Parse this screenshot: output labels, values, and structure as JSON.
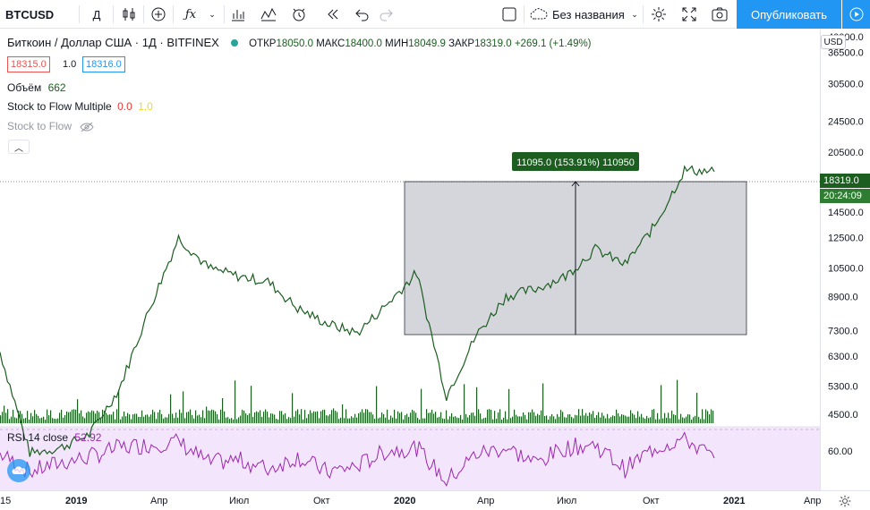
{
  "toolbar": {
    "symbol": "BTCUSD",
    "interval": "Д",
    "layout_name": "Без названия",
    "publish_label": "Опубликовать",
    "icons": [
      "candles-icon",
      "add-compare-icon",
      "indicators-icon",
      "templates-icon",
      "alert-icon",
      "replay-icon",
      "undo-icon",
      "redo-icon",
      "settings-icon",
      "fullscreen-icon",
      "camera-icon",
      "play-icon"
    ]
  },
  "legend": {
    "title": "Биткоин / Доллар США · 1Д · BITFINEX",
    "open_label": "ОТКР",
    "open": "18050.0",
    "high_label": "МАКС",
    "high": "18400.0",
    "low_label": "МИН",
    "low": "18049.9",
    "close_label": "ЗАКР",
    "close": "18319.0",
    "change": "+269.1 (+1.49%)",
    "bid": "18315.0",
    "spread": "1.0",
    "ask": "18316.0",
    "volume_label": "Объём",
    "volume": "662",
    "s2f_label": "Stock to Flow Multiple",
    "s2f_val1": "0.0",
    "s2f_val2": "1.0",
    "s2f_hidden_label": "Stock to Flow"
  },
  "measure": {
    "label": "11095.0 (153.91%) 110950"
  },
  "price_axis": {
    "currency": "USD",
    "ticks": [
      "40000.0",
      "36500.0",
      "30500.0",
      "24500.0",
      "20500.0",
      "14500.0",
      "12500.0",
      "10500.0",
      "8900.0",
      "7300.0",
      "6300.0",
      "5300.0",
      "4500.0"
    ],
    "last_price": "18319.0",
    "countdown": "20:24:09",
    "rsi_tick": "60.00"
  },
  "rsi": {
    "label": "RSI 14 close",
    "value": "52.92"
  },
  "time_axis": {
    "labels": [
      "15",
      "2019",
      "Апр",
      "Июл",
      "Окт",
      "2020",
      "Апр",
      "Июл",
      "Окт",
      "2021",
      "Апр"
    ]
  },
  "colors": {
    "up": "#1b5e20",
    "accent": "#2196f3",
    "rsi_line": "#9c27b0",
    "rsi_bg": "#f3e5fb",
    "measure": "#1b5e20"
  },
  "chart_data": {
    "type": "line",
    "x": [
      "2018-10",
      "2018-12",
      "2019-01",
      "2019-03",
      "2019-04",
      "2019-05",
      "2019-06",
      "2019-07",
      "2019-08",
      "2019-09",
      "2019-10",
      "2019-11",
      "2019-12",
      "2020-01",
      "2020-02",
      "2020-03",
      "2020-04",
      "2020-05",
      "2020-06",
      "2020-07",
      "2020-08",
      "2020-09",
      "2020-10",
      "2020-11",
      "2020-12"
    ],
    "series": [
      {
        "values": [
          6450,
          3600,
          3700,
          4000,
          5200,
          8200,
          12500,
          10500,
          10000,
          9700,
          8300,
          7600,
          7200,
          8500,
          10200,
          5000,
          7100,
          8900,
          9300,
          10000,
          11700,
          10700,
          13400,
          18500,
          18319
        ]
      }
    ],
    "rsi": [
      60,
      30,
      45,
      55,
      70,
      75,
      80,
      45,
      50,
      35,
      55,
      30,
      40,
      65,
      70,
      15,
      60,
      70,
      45,
      70,
      75,
      35,
      70,
      85,
      52.92
    ],
    "ylabel": "",
    "measure": {
      "from": 7223,
      "to": 18318,
      "change": 11095,
      "percent": 153.91
    }
  }
}
